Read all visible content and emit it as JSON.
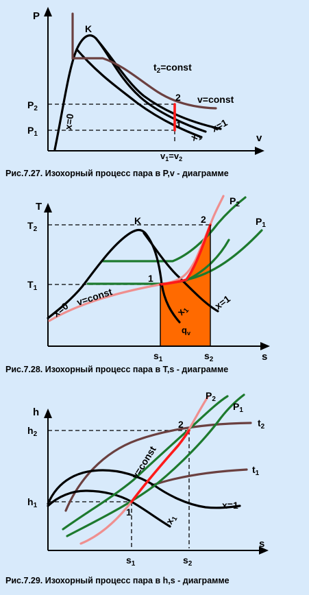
{
  "fig1": {
    "y_axis": "P",
    "x_axis": "v",
    "label_K": "K",
    "label_t2": "t",
    "label_t2_sub": "2",
    "label_t2_rest": "=const",
    "label_vconst": "v=const",
    "label_x0": "x=0",
    "label_x1": "x=1",
    "label_xmid": "x",
    "label_xmid_sub": "1",
    "label_P2": "P",
    "label_P2_sub": "2",
    "label_P1": "P",
    "label_P1_sub": "1",
    "label_pt2": "2",
    "label_pt1": "1",
    "label_vv_a": "v",
    "label_vv_a_sub": "1",
    "label_vv_eq": "=v",
    "label_vv_b_sub": "2",
    "caption": "Рис.7.27. Изохорный процесс пара в P,v - диаграмме"
  },
  "fig2": {
    "y_axis": "T",
    "x_axis": "s",
    "label_K": "K",
    "label_P2": "P",
    "label_P2_sub": "2",
    "label_P1": "P",
    "label_P1_sub": "1",
    "label_T2": "T",
    "label_T2_sub": "2",
    "label_T1": "T",
    "label_T1_sub": "1",
    "label_pt2": "2",
    "label_pt1": "1",
    "label_x0": "x=0",
    "label_x1": "x=1",
    "label_vconst": "v=const",
    "label_xmid": "x",
    "label_xmid_sub": "1",
    "label_q": "q",
    "label_q_sub": "v",
    "label_s1": "s",
    "label_s1_sub": "1",
    "label_s2": "s",
    "label_s2_sub": "2",
    "caption": "Рис.7.28. Изохорный процесс пара в T,s - диаграмме",
    "fill_color": "#ff6a00"
  },
  "fig3": {
    "y_axis": "h",
    "x_axis": "s",
    "label_P2": "P",
    "label_P2_sub": "2",
    "label_P1": "P",
    "label_P1_sub": "1",
    "label_t2": "t",
    "label_t2_sub": "2",
    "label_t1": "t",
    "label_t1_sub": "1",
    "label_h2": "h",
    "label_h2_sub": "2",
    "label_h1": "h",
    "label_h1_sub": "1",
    "label_pt2": "2",
    "label_pt1": "1",
    "label_vconst": "v=const",
    "label_x1": "x=1",
    "label_xmid": "x",
    "label_xmid_sub": "1",
    "label_s1": "s",
    "label_s1_sub": "1",
    "label_s2": "s",
    "label_s2_sub": "2",
    "caption": "Рис.7.29. Изохорный процесс пара в h,s - диаграмме"
  }
}
